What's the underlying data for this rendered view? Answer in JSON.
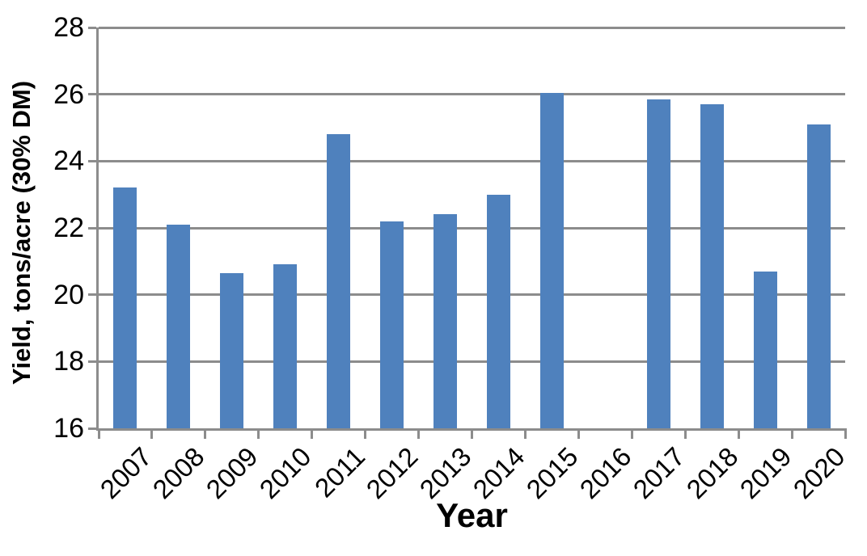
{
  "chart_data": {
    "type": "bar",
    "title": "",
    "xlabel": "Year",
    "ylabel": "Yield, tons/acre (30% DM)",
    "categories": [
      "2007",
      "2008",
      "2009",
      "2010",
      "2011",
      "2012",
      "2013",
      "2014",
      "2015",
      "2016",
      "2017",
      "2018",
      "2019",
      "2020"
    ],
    "values": [
      23.2,
      22.1,
      20.65,
      20.9,
      24.8,
      22.2,
      22.4,
      23.0,
      26.05,
      null,
      25.85,
      25.7,
      20.7,
      25.1
    ],
    "ylim": [
      16,
      28
    ],
    "yticks": [
      16,
      18,
      20,
      22,
      24,
      26,
      28
    ],
    "grid": true,
    "legend": false,
    "colors": {
      "bar": "#4F81BD",
      "grid": "#8C8C8C",
      "axis": "#8C8C8C",
      "text": "#000000",
      "background": "#FFFFFF"
    }
  }
}
